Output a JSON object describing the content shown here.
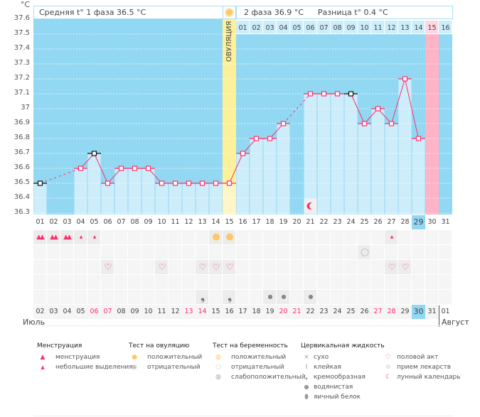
{
  "chart_data": {
    "type": "line",
    "ylabel": "°C",
    "ylim": [
      36.3,
      37.6
    ],
    "yticks": [
      "37.6",
      "37.5",
      "37.4",
      "37.3",
      "37.2",
      "37.1",
      "37",
      "36.9",
      "36.8",
      "36.7",
      "36.6",
      "36.5",
      "36.4",
      "36.3"
    ],
    "days": [
      "01",
      "02",
      "03",
      "04",
      "05",
      "06",
      "07",
      "08",
      "09",
      "10",
      "11",
      "12",
      "13",
      "14",
      "15",
      "16",
      "17",
      "18",
      "19",
      "20",
      "21",
      "22",
      "23",
      "24",
      "25",
      "26",
      "27",
      "28",
      "29",
      "30",
      "31"
    ],
    "temperatures": [
      36.5,
      null,
      null,
      36.6,
      36.7,
      36.5,
      36.6,
      36.6,
      36.6,
      36.5,
      36.5,
      36.5,
      36.5,
      36.5,
      36.5,
      36.7,
      36.8,
      36.8,
      36.9,
      null,
      37.1,
      37.1,
      37.1,
      37.1,
      36.9,
      37.0,
      36.9,
      37.2,
      36.8,
      null,
      null
    ],
    "black_marker_days": [
      "01",
      "05",
      "24"
    ],
    "ovulation_day": "15",
    "ovulation_label": "ОВУЛЯЦИЯ",
    "highlight_day": "30",
    "today_day": "29",
    "phase2_days": [
      "01",
      "02",
      "03",
      "04",
      "05",
      "06",
      "07",
      "08",
      "09",
      "10",
      "11",
      "12",
      "13",
      "14",
      "15",
      "16"
    ],
    "moon_day": "21",
    "colors": {
      "bg": "#92d8f3",
      "bar": "#cdedfb",
      "line": "#ff2f6b",
      "ovulation": "#fdf09a",
      "highlight": "#ffb3c6"
    }
  },
  "header": {
    "phase1": "Средняя t° 1 фаза 36.5 °C",
    "phase2": "2 фаза 36.9 °C",
    "diff": "Разница t° 0.4 °C"
  },
  "rows": {
    "menstruation": {
      "heavy": [
        "01",
        "02",
        "03"
      ],
      "light": [
        "04",
        "05",
        "27"
      ]
    },
    "ovulation_test_positive": [
      "14",
      "15"
    ],
    "pregnancy_test_negative": [
      "25"
    ],
    "sex": [
      "06",
      "10",
      "13",
      "14",
      "15",
      "27",
      "28"
    ],
    "medication": [],
    "fluid": {
      "creamy": [
        "13",
        "15"
      ],
      "watery": [
        "18",
        "19",
        "21"
      ]
    }
  },
  "dates": [
    "02",
    "03",
    "04",
    "05",
    "06",
    "07",
    "08",
    "09",
    "10",
    "11",
    "12",
    "13",
    "14",
    "15",
    "16",
    "17",
    "18",
    "19",
    "20",
    "21",
    "22",
    "23",
    "24",
    "25",
    "26",
    "27",
    "28",
    "29",
    "30",
    "31",
    "01"
  ],
  "weekend_dates": [
    "06",
    "07",
    "13",
    "14",
    "20",
    "21",
    "27",
    "28"
  ],
  "current_date": "30",
  "month1": "Июль",
  "month2": "Август",
  "legend": {
    "menstruation": {
      "title": "Менструация",
      "items": [
        "менструация",
        "небольшие выделения"
      ]
    },
    "ovulation": {
      "title": "Тест на овуляцию",
      "items": [
        "положительный",
        "отрицательный"
      ]
    },
    "pregnancy": {
      "title": "Тест на беременность",
      "items": [
        "положительный",
        "отрицательный",
        "слабоположительный"
      ]
    },
    "fluid": {
      "title": "Цервикальная жидкость",
      "items": [
        "сухо",
        "клейкая",
        "кремообразная",
        "водянистая",
        "яичный белок"
      ]
    },
    "other": {
      "items": [
        "половой акт",
        "прием лекарств",
        "лунный календарь"
      ]
    }
  }
}
